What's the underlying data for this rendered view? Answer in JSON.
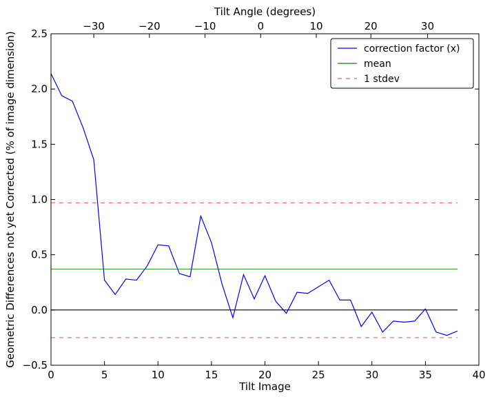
{
  "chart_data": {
    "type": "line",
    "xlabel": "Tilt Image",
    "ylabel": "Geometric Differences not yet Corrected (% of image dimension)",
    "top_xlabel": "Tilt Angle (degrees)",
    "xlim": [
      0,
      40
    ],
    "ylim": [
      -0.5,
      2.5
    ],
    "xticks": [
      0,
      5,
      10,
      15,
      20,
      25,
      30,
      35,
      40
    ],
    "yticks": [
      -0.5,
      0.0,
      0.5,
      1.0,
      1.5,
      2.0,
      2.5
    ],
    "xtick_labels": [
      "0",
      "5",
      "10",
      "15",
      "20",
      "25",
      "30",
      "35",
      "40"
    ],
    "ytick_labels": [
      "−0.5",
      "0.0",
      "0.5",
      "1.0",
      "1.5",
      "2.0",
      "2.5"
    ],
    "top_ticks": [
      {
        "x": 4,
        "label": "−30"
      },
      {
        "x": 9.2,
        "label": "−20"
      },
      {
        "x": 14.4,
        "label": "−10"
      },
      {
        "x": 19.6,
        "label": "0"
      },
      {
        "x": 24.8,
        "label": "10"
      },
      {
        "x": 29.9,
        "label": "20"
      },
      {
        "x": 35.2,
        "label": "30"
      }
    ],
    "grid": false,
    "legend_position": "top-right",
    "series": [
      {
        "name": "correction factor (x)",
        "color": "#0000ff",
        "style": "solid",
        "x": [
          0,
          1,
          2,
          3,
          4,
          5,
          6,
          7,
          8,
          9,
          10,
          11,
          12,
          13,
          14,
          15,
          16,
          17,
          18,
          19,
          20,
          21,
          22,
          23,
          24,
          25,
          26,
          27,
          28,
          29,
          30,
          31,
          32,
          33,
          34,
          35,
          36,
          37,
          38
        ],
        "y": [
          2.14,
          1.94,
          1.89,
          1.65,
          1.36,
          0.27,
          0.14,
          0.28,
          0.27,
          0.4,
          0.59,
          0.58,
          0.33,
          0.3,
          0.85,
          0.61,
          0.23,
          -0.07,
          0.32,
          0.1,
          0.31,
          0.08,
          -0.03,
          0.16,
          0.15,
          0.21,
          0.27,
          0.09,
          0.09,
          -0.15,
          -0.02,
          -0.2,
          -0.1,
          -0.11,
          -0.1,
          0.01,
          -0.2,
          -0.23,
          -0.19
        ]
      },
      {
        "name": "mean",
        "color": "#008000",
        "style": "solid",
        "x": [
          0,
          38
        ],
        "y": [
          0.37,
          0.37
        ]
      },
      {
        "name": "1 stdev",
        "color": "#ff0000",
        "style": "dashed",
        "x": [
          0,
          38
        ],
        "y": [
          0.97,
          0.97
        ]
      },
      {
        "name": "",
        "color": "#ff0000",
        "style": "dashed",
        "x": [
          0,
          38
        ],
        "y": [
          -0.25,
          -0.25
        ]
      },
      {
        "name": "",
        "color": "#000000",
        "style": "solid",
        "x": [
          0,
          38
        ],
        "y": [
          0.0,
          0.0
        ]
      }
    ]
  }
}
